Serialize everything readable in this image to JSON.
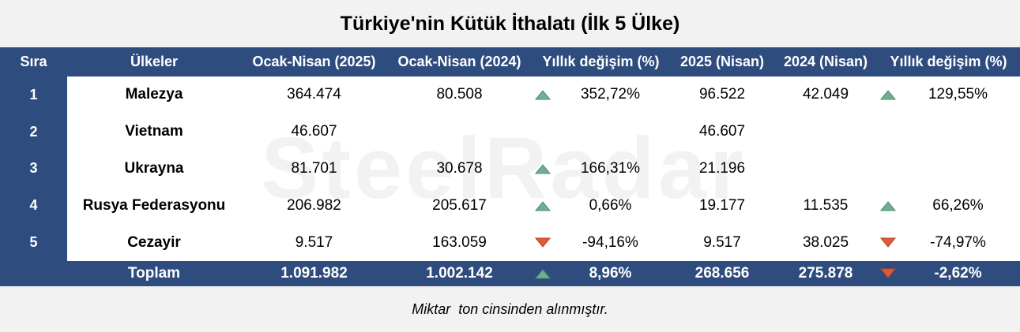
{
  "header": {
    "title": "Türkiye'nin Kütük İthalatı (İlk 5 Ülke)"
  },
  "watermark": "SteelRadar",
  "table": {
    "columns": [
      "Sıra",
      "Ülkeler",
      "Ocak-Nisan (2025)",
      "Ocak-Nisan (2024)",
      "Yıllık değişim (%)",
      "2025 (Nisan)",
      "2024 (Nisan)",
      "Yıllık değişim (%)"
    ],
    "rows": [
      [
        "1",
        "Malezya",
        "364.474",
        "80.508",
        {
          "text": "352,72%",
          "trend": "up"
        },
        "96.522",
        "42.049",
        {
          "text": "129,55%",
          "trend": "up"
        }
      ],
      [
        "2",
        "Vietnam",
        "46.607",
        null,
        null,
        "46.607",
        null,
        null
      ],
      [
        "3",
        "Ukrayna",
        "81.701",
        "30.678",
        {
          "text": "166,31%",
          "trend": "up"
        },
        "21.196",
        null,
        null
      ],
      [
        "4",
        "Rusya Federasyonu",
        "206.982",
        "205.617",
        {
          "text": "0,66%",
          "trend": "up"
        },
        "19.177",
        "11.535",
        {
          "text": "66,26%",
          "trend": "up"
        }
      ],
      [
        "5",
        "Cezayir",
        "9.517",
        "163.059",
        {
          "text": "-94,16%",
          "trend": "down"
        },
        "9.517",
        "38.025",
        {
          "text": "-74,97%",
          "trend": "down"
        }
      ]
    ],
    "total": [
      null,
      "Toplam",
      "1.091.982",
      "1.002.142",
      {
        "text": "8,96%",
        "trend": "up"
      },
      "268.656",
      "275.878",
      {
        "text": "-2,62%",
        "trend": "down"
      }
    ]
  },
  "footer": {
    "note": "Miktar  ton cinsinden alınmıştır."
  }
}
